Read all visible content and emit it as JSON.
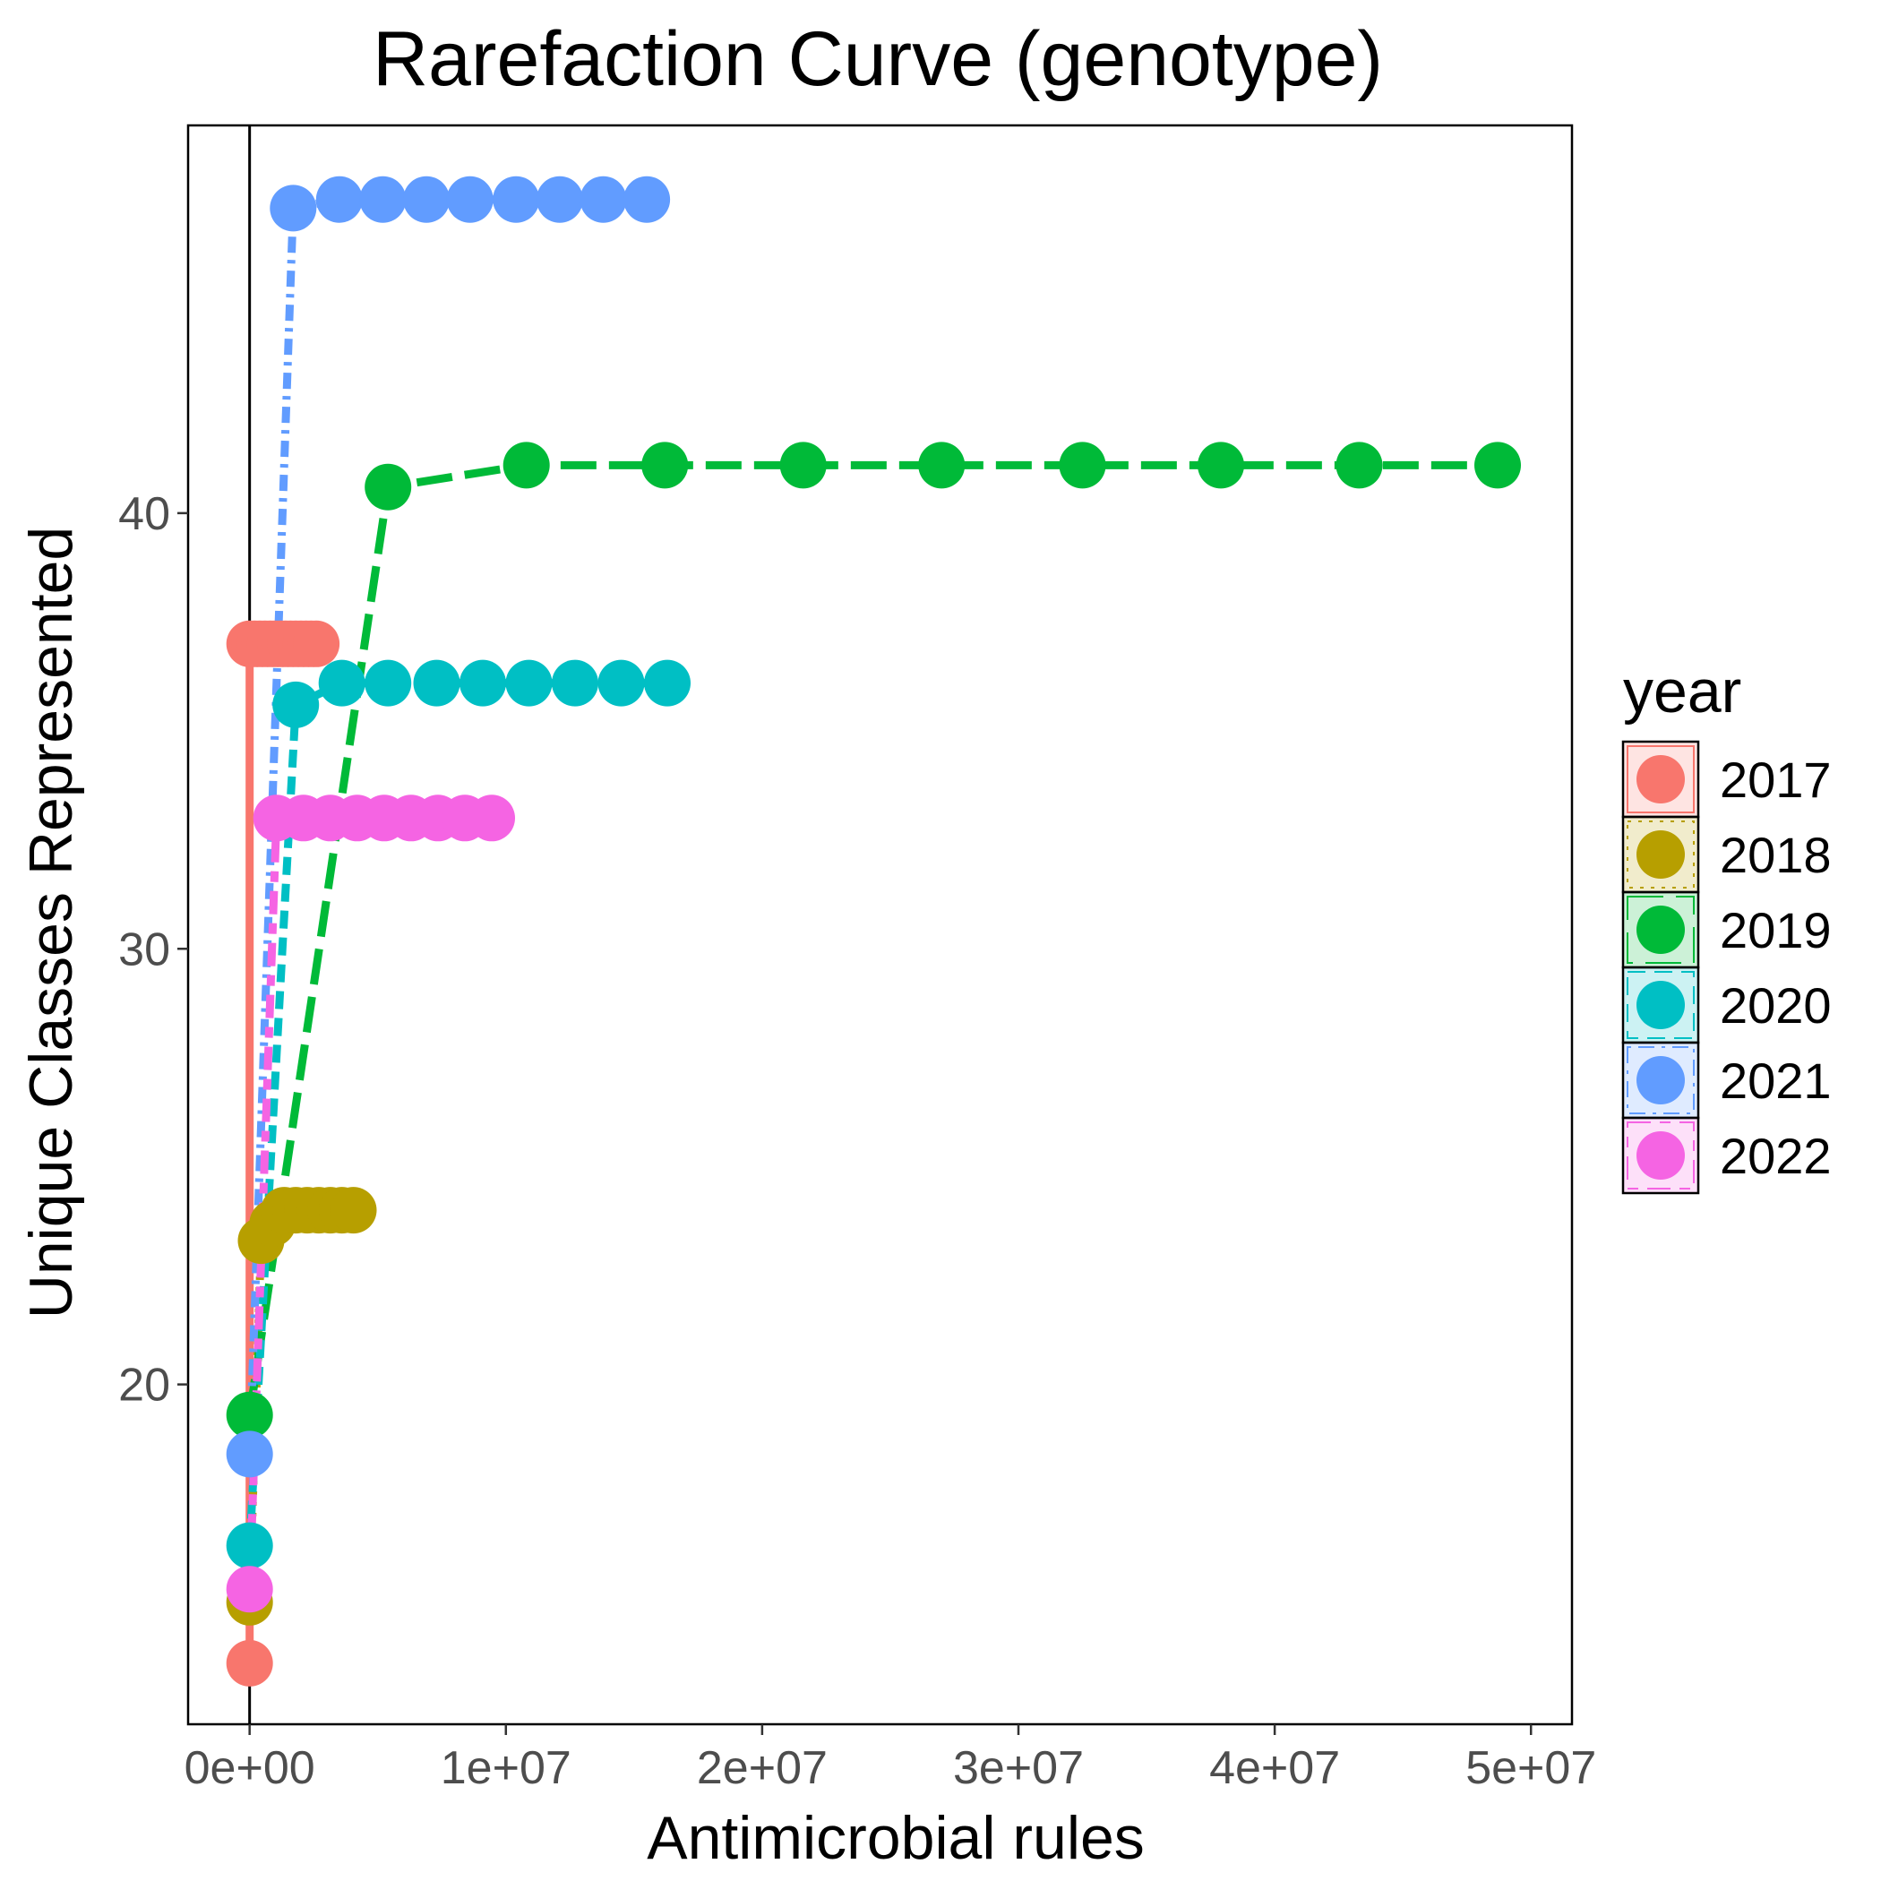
{
  "chart_data": {
    "type": "line",
    "title": "Rarefaction Curve (genotype)",
    "xlabel": "Antimicrobial rules",
    "ylabel": "Unique Classes Represented",
    "xlim": [
      -2400000,
      51600000
    ],
    "ylim": [
      12.2,
      48.9
    ],
    "x_ticks": [
      0,
      10000000,
      20000000,
      30000000,
      40000000,
      50000000
    ],
    "x_tick_labels": [
      "0e+00",
      "1e+07",
      "2e+07",
      "3e+07",
      "4e+07",
      "5e+07"
    ],
    "y_ticks": [
      20,
      30,
      40
    ],
    "y_tick_labels": [
      "20",
      "30",
      "40"
    ],
    "vline_x": 0,
    "grid": false,
    "legend": {
      "title": "year",
      "position": "right"
    },
    "series": [
      {
        "name": "2017",
        "color": "#F8766D",
        "dash": "solid",
        "x": [
          0,
          0,
          200000,
          400000,
          600000,
          800000,
          1000000,
          1200000,
          1400000,
          1600000,
          1800000,
          2000000,
          2200000,
          2400000,
          2600000
        ],
        "y": [
          13.6,
          37.0,
          37.0,
          37.0,
          37.0,
          37.0,
          37.0,
          37.0,
          37.0,
          37.0,
          37.0,
          37.0,
          37.0,
          37.0,
          37.0
        ]
      },
      {
        "name": "2018",
        "color": "#B79F00",
        "dash": "dotted",
        "x": [
          0,
          450000,
          900000,
          1350000,
          1800000,
          2250000,
          2700000,
          3150000,
          3600000,
          4050000
        ],
        "y": [
          15.0,
          23.3,
          23.7,
          24.0,
          24.0,
          24.0,
          24.0,
          24.0,
          24.0,
          24.0
        ]
      },
      {
        "name": "2019",
        "color": "#00BA38",
        "dash": "longdash",
        "x": [
          0,
          5400000,
          10800000,
          16200000,
          21600000,
          27000000,
          32500000,
          37900000,
          43300000,
          48700000
        ],
        "y": [
          19.3,
          40.6,
          41.1,
          41.1,
          41.1,
          41.1,
          41.1,
          41.1,
          41.1,
          41.1
        ]
      },
      {
        "name": "2020",
        "color": "#00BFC4",
        "dash": "dashed",
        "x": [
          0,
          1800000,
          3600000,
          5400000,
          7300000,
          9100000,
          10900000,
          12700000,
          14500000,
          16300000
        ],
        "y": [
          16.3,
          35.6,
          36.1,
          36.1,
          36.1,
          36.1,
          36.1,
          36.1,
          36.1,
          36.1
        ]
      },
      {
        "name": "2021",
        "color": "#619CFF",
        "dash": "dotdash",
        "x": [
          0,
          1700000,
          3500000,
          5200000,
          6900000,
          8600000,
          10400000,
          12100000,
          13800000,
          15500000
        ],
        "y": [
          18.4,
          47.0,
          47.2,
          47.2,
          47.2,
          47.2,
          47.2,
          47.2,
          47.2,
          47.2
        ]
      },
      {
        "name": "2022",
        "color": "#F564E3",
        "dash": "twodash",
        "x": [
          0,
          1050000,
          2100000,
          3150000,
          4200000,
          5250000,
          6300000,
          7350000,
          8400000,
          9450000
        ],
        "y": [
          15.3,
          33.0,
          33.0,
          33.0,
          33.0,
          33.0,
          33.0,
          33.0,
          33.0,
          33.0
        ]
      }
    ]
  }
}
